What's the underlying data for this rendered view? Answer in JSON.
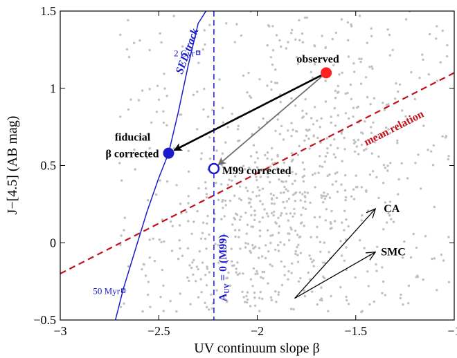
{
  "chart_data": {
    "type": "scatter",
    "xlabel": "UV continuum slope β",
    "ylabel": "J−[4.5] (AB mag)",
    "xlim": [
      -3,
      -1
    ],
    "ylim": [
      -0.5,
      1.5
    ],
    "x_ticks": [
      -3,
      -2.5,
      -2,
      -1.5,
      -1
    ],
    "x_tick_labels": [
      "−3",
      "−2.5",
      "−2",
      "−1.5",
      "−1"
    ],
    "y_ticks": [
      -0.5,
      0,
      0.5,
      1,
      1.5
    ],
    "y_tick_labels": [
      "−0.5",
      "0",
      "0.5",
      "1",
      "1.5"
    ],
    "grid": false,
    "background_points": {
      "count": 900,
      "x_range": [
        -2.7,
        -1.02
      ],
      "y_range": [
        -0.45,
        1.5
      ],
      "color": "#c0c0c0"
    },
    "sed_track": {
      "label": "SED track",
      "color": "#1a1acc",
      "x": [
        -2.72,
        -2.68,
        -2.62,
        -2.56,
        -2.5,
        -2.45,
        -2.4,
        -2.35,
        -2.3,
        -2.26
      ],
      "y": [
        -0.5,
        -0.3,
        -0.05,
        0.2,
        0.42,
        0.58,
        0.85,
        1.15,
        1.42,
        1.5
      ],
      "markers": [
        {
          "label": "2 Gyr",
          "x": -2.3,
          "y": 1.23
        },
        {
          "label": "50 Myr",
          "x": -2.68,
          "y": -0.31
        }
      ]
    },
    "mean_relation": {
      "label": "mean relation",
      "color": "#c0101a",
      "x": [
        -3,
        -1
      ],
      "y": [
        -0.2,
        1.1
      ]
    },
    "auv_zero_line": {
      "label": "A",
      "label_sub": "UV",
      "label_rest": " = 0 (M99)",
      "color": "#1a1acc",
      "x": -2.22
    },
    "observed": {
      "label": "observed",
      "x": -1.65,
      "y": 1.1,
      "color": "#ff2020"
    },
    "fiducial": {
      "label_line1": "fiducial",
      "label_line2": "β corrected",
      "x": -2.45,
      "y": 0.58,
      "color": "#1a1acc"
    },
    "m99": {
      "label": "M99 corrected",
      "x": -2.22,
      "y": 0.48,
      "color": "#1a1acc"
    },
    "reddening_vectors": {
      "origin": {
        "x": -1.81,
        "y": -0.36
      },
      "vectors": [
        {
          "label": "CA",
          "x": -1.4,
          "y": 0.22
        },
        {
          "label": "SMC",
          "x": -1.4,
          "y": -0.06
        }
      ]
    }
  }
}
